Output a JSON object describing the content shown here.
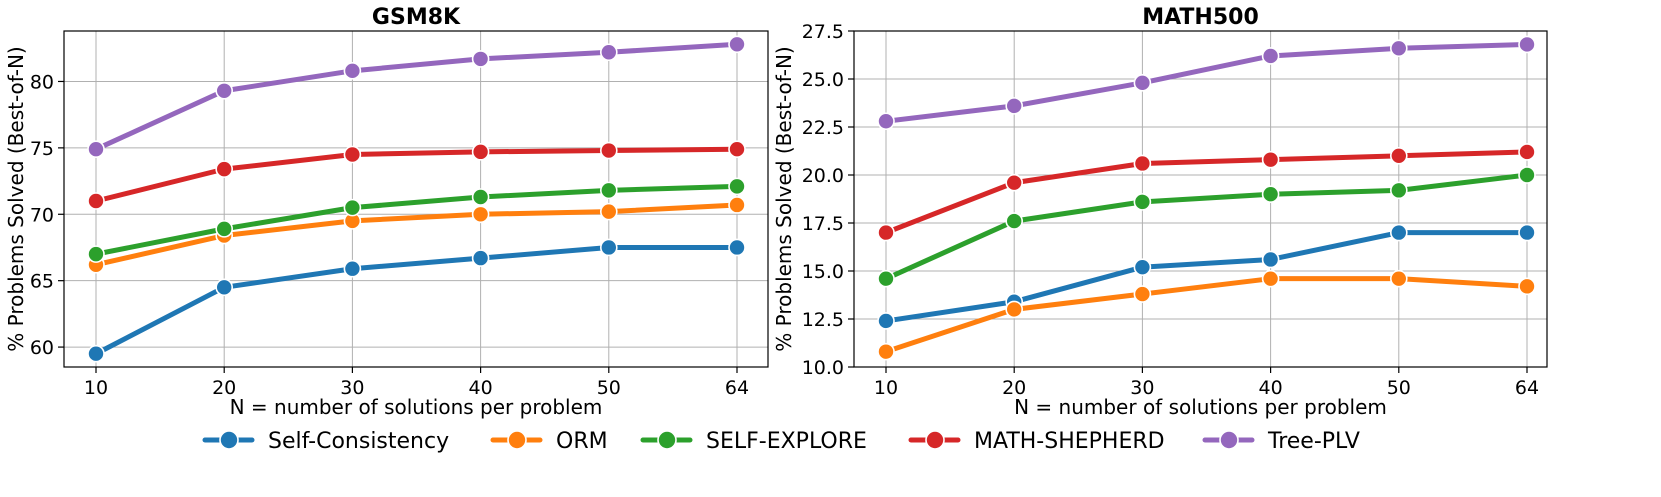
{
  "chart_data": [
    {
      "type": "line",
      "title": "GSM8K",
      "xlabel": "N = number of solutions per problem",
      "ylabel": "% Problems Solved (Best-of-N)",
      "categories": [
        "10",
        "20",
        "30",
        "40",
        "50",
        "64"
      ],
      "ylim": [
        58.5,
        83.8
      ],
      "yticks": [
        60,
        65,
        70,
        75,
        80
      ],
      "ytick_labels": [
        "60",
        "65",
        "70",
        "75",
        "80"
      ],
      "grid": true,
      "series": [
        {
          "name": "Self-Consistency",
          "color": "#1f77b4",
          "values": [
            59.5,
            64.5,
            65.9,
            66.7,
            67.5,
            67.5
          ]
        },
        {
          "name": "ORM",
          "color": "#ff7f0e",
          "values": [
            66.2,
            68.4,
            69.5,
            70.0,
            70.2,
            70.7
          ]
        },
        {
          "name": "SELF-EXPLORE",
          "color": "#2ca02c",
          "values": [
            67.0,
            68.9,
            70.5,
            71.3,
            71.8,
            72.1
          ]
        },
        {
          "name": "MATH-SHEPHERD",
          "color": "#d62728",
          "values": [
            71.0,
            73.4,
            74.5,
            74.7,
            74.8,
            74.9
          ]
        },
        {
          "name": "Tree-PLV",
          "color": "#9467bd",
          "values": [
            74.9,
            79.3,
            80.8,
            81.7,
            82.2,
            82.8
          ]
        }
      ]
    },
    {
      "type": "line",
      "title": "MATH500",
      "xlabel": "N = number of solutions per problem",
      "ylabel": "% Problems Solved (Best-of-N)",
      "categories": [
        "10",
        "20",
        "30",
        "40",
        "50",
        "64"
      ],
      "ylim": [
        10.0,
        27.5
      ],
      "yticks": [
        10.0,
        12.5,
        15.0,
        17.5,
        20.0,
        22.5,
        25.0,
        27.5
      ],
      "ytick_labels": [
        "10.0",
        "12.5",
        "15.0",
        "17.5",
        "20.0",
        "22.5",
        "25.0",
        "27.5"
      ],
      "grid": true,
      "series": [
        {
          "name": "Self-Consistency",
          "color": "#1f77b4",
          "values": [
            12.4,
            13.4,
            15.2,
            15.6,
            17.0,
            17.0
          ]
        },
        {
          "name": "ORM",
          "color": "#ff7f0e",
          "values": [
            10.8,
            13.0,
            13.8,
            14.6,
            14.6,
            14.2
          ]
        },
        {
          "name": "SELF-EXPLORE",
          "color": "#2ca02c",
          "values": [
            14.6,
            17.6,
            18.6,
            19.0,
            19.2,
            20.0
          ]
        },
        {
          "name": "MATH-SHEPHERD",
          "color": "#d62728",
          "values": [
            17.0,
            19.6,
            20.6,
            20.8,
            21.0,
            21.2
          ]
        },
        {
          "name": "Tree-PLV",
          "color": "#9467bd",
          "values": [
            22.8,
            23.6,
            24.8,
            26.2,
            26.6,
            26.8
          ]
        }
      ]
    }
  ],
  "legend": {
    "position": "bottom-center",
    "entries": [
      {
        "name": "Self-Consistency",
        "color": "#1f77b4"
      },
      {
        "name": "ORM",
        "color": "#ff7f0e"
      },
      {
        "name": "SELF-EXPLORE",
        "color": "#2ca02c"
      },
      {
        "name": "MATH-SHEPHERD",
        "color": "#d62728"
      },
      {
        "name": "Tree-PLV",
        "color": "#9467bd"
      }
    ]
  }
}
